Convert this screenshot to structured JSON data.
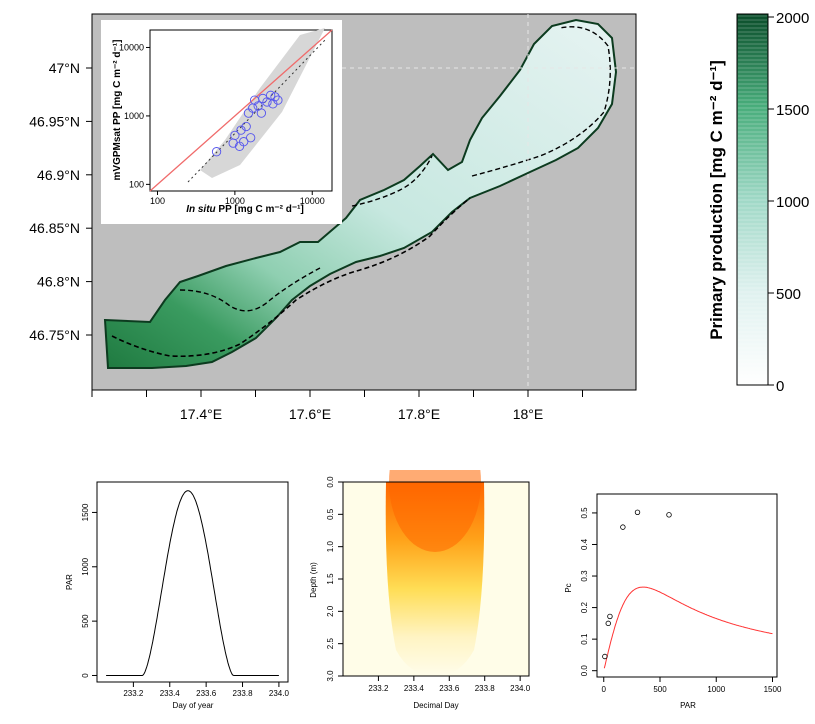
{
  "chart_data": [
    {
      "type": "heatmap",
      "title": "",
      "lat_ticks": [
        "47°N",
        "46.95°N",
        "46.9°N",
        "46.85°N",
        "46.8°N",
        "46.75°N"
      ],
      "lat_values": [
        47.0,
        46.95,
        46.9,
        46.85,
        46.8,
        46.75
      ],
      "lon_ticks": [
        "17.4°E",
        "17.6°E",
        "17.8°E",
        "18°E"
      ],
      "lon_values": [
        17.4,
        17.6,
        17.8,
        18.0
      ],
      "colorbar": {
        "label": "Primary production [mg C m⁻² d⁻¹]",
        "ticks": [
          "2000",
          "1500",
          "1000",
          "500",
          "0"
        ],
        "range": [
          0,
          2000
        ],
        "colors": [
          "#ffffff",
          "#dff1ef",
          "#9fd8c6",
          "#48ad7b",
          "#0a4d2a"
        ]
      },
      "inset": {
        "type": "scatter",
        "xlabel_italic": "In situ",
        "xlabel": "PP [mg C m⁻² d⁻¹]",
        "ylabel": "mVGPMsat PP [mg C m⁻² d⁻¹]",
        "x_ticks": [
          "100",
          "1000",
          "10000"
        ],
        "y_ticks": [
          "100",
          "1000",
          "10000"
        ],
        "scale": "log",
        "xlim": [
          80,
          18000
        ],
        "ylim": [
          80,
          18000
        ],
        "points": [
          [
            580,
            300
          ],
          [
            950,
            400
          ],
          [
            1000,
            520
          ],
          [
            1150,
            360
          ],
          [
            1200,
            620
          ],
          [
            1300,
            420
          ],
          [
            1400,
            700
          ],
          [
            1500,
            1100
          ],
          [
            1600,
            480
          ],
          [
            1700,
            1300
          ],
          [
            1800,
            1700
          ],
          [
            2000,
            1400
          ],
          [
            2200,
            1100
          ],
          [
            2300,
            1800
          ],
          [
            2600,
            1600
          ],
          [
            2900,
            2000
          ],
          [
            3100,
            1500
          ],
          [
            3300,
            1900
          ],
          [
            3600,
            1700
          ]
        ]
      }
    },
    {
      "type": "line",
      "xlabel": "Day of year",
      "ylabel": "PAR",
      "x_ticks": [
        "233.2",
        "233.4",
        "233.6",
        "233.8",
        "234.0"
      ],
      "y_ticks": [
        "0",
        "500",
        "1000",
        "1500"
      ],
      "xlim": [
        233.0,
        234.05
      ],
      "ylim": [
        -60,
        1780
      ],
      "sunrise": 233.25,
      "sunset": 233.75,
      "peak": 1700
    },
    {
      "type": "heatmap",
      "xlabel": "Decimal Day",
      "ylabel": "Depth (m)",
      "x_ticks": [
        "233.2",
        "233.4",
        "233.6",
        "233.8",
        "234.0"
      ],
      "y_ticks": [
        "0.0",
        "0.5",
        "1.0",
        "1.5",
        "2.0",
        "2.5",
        "3.0"
      ],
      "xlim": [
        233.0,
        234.05
      ],
      "ylim": [
        0,
        3.0
      ]
    },
    {
      "type": "scatter",
      "xlabel": "PAR",
      "ylabel": "Pc",
      "x_ticks": [
        "0",
        "500",
        "1000",
        "1500"
      ],
      "y_ticks": [
        "0.0",
        "0.1",
        "0.2",
        "0.3",
        "0.4",
        "0.5"
      ],
      "xlim": [
        -60,
        1540
      ],
      "ylim": [
        -0.02,
        0.56
      ],
      "points": [
        [
          10,
          0.045
        ],
        [
          40,
          0.15
        ],
        [
          55,
          0.172
        ],
        [
          170,
          0.455
        ],
        [
          300,
          0.502
        ],
        [
          580,
          0.494
        ]
      ],
      "fit_color": "#ff3333"
    }
  ]
}
